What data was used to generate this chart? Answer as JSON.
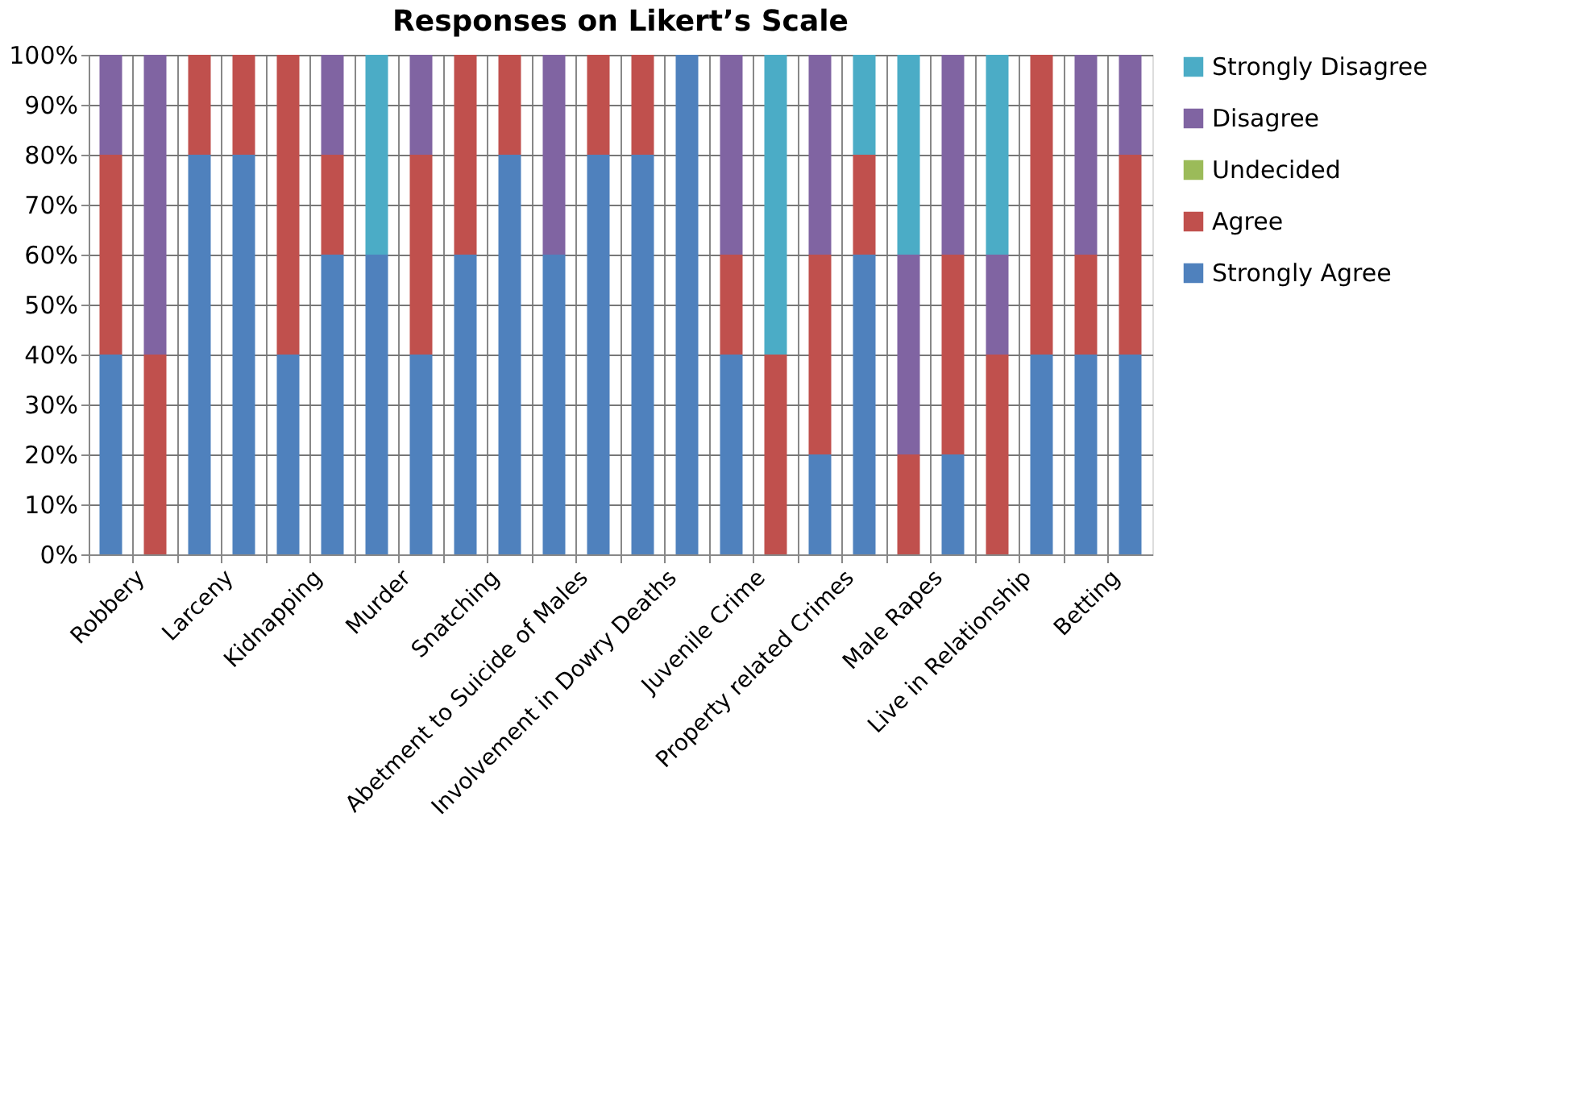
{
  "chart_data": {
    "type": "bar",
    "stacked": true,
    "title": "Responses on Likert’s Scale",
    "categories": [
      "Robbery",
      null,
      "Larceny",
      null,
      "Kidnapping",
      null,
      "Murder",
      null,
      "Snatching",
      null,
      "Abetment to  Suicide of Males",
      null,
      "Involvement in Dowry Deaths",
      null,
      "Juvenile Crime",
      null,
      "Property related Crimes",
      null,
      "Male Rapes",
      null,
      "Live in Relationship",
      null,
      "Betting",
      null
    ],
    "series": [
      {
        "name": "Strongly Agree",
        "color": "#4f81bd",
        "values": [
          40,
          0,
          80,
          80,
          40,
          60,
          60,
          40,
          60,
          80,
          60,
          80,
          80,
          100,
          40,
          0,
          20,
          60,
          0,
          20,
          0,
          40,
          40,
          40
        ]
      },
      {
        "name": "Agree",
        "color": "#c0504d",
        "values": [
          40,
          40,
          20,
          20,
          60,
          20,
          0,
          40,
          40,
          20,
          0,
          20,
          20,
          0,
          20,
          40,
          40,
          20,
          20,
          40,
          40,
          60,
          20,
          40
        ]
      },
      {
        "name": "Undecided",
        "color": "#9bbb59",
        "values": [
          0,
          0,
          0,
          0,
          0,
          0,
          0,
          0,
          0,
          0,
          0,
          0,
          0,
          0,
          0,
          0,
          0,
          0,
          0,
          0,
          0,
          0,
          0,
          0
        ]
      },
      {
        "name": "Disagree",
        "color": "#8064a2",
        "values": [
          20,
          60,
          0,
          0,
          0,
          20,
          0,
          20,
          0,
          0,
          40,
          0,
          0,
          0,
          40,
          0,
          40,
          0,
          40,
          40,
          20,
          0,
          40,
          20
        ]
      },
      {
        "name": "Strongly Disagree",
        "color": "#4bacc6",
        "values": [
          0,
          0,
          0,
          0,
          0,
          0,
          40,
          0,
          0,
          0,
          0,
          0,
          0,
          0,
          0,
          60,
          0,
          20,
          40,
          0,
          40,
          0,
          0,
          0
        ]
      }
    ],
    "ylim": [
      0,
      100
    ],
    "yticks": [
      {
        "value": 0,
        "label": "0%"
      },
      {
        "value": 10,
        "label": "10%"
      },
      {
        "value": 20,
        "label": "20%"
      },
      {
        "value": 30,
        "label": "30%"
      },
      {
        "value": 40,
        "label": "40%"
      },
      {
        "value": 50,
        "label": "50%"
      },
      {
        "value": 60,
        "label": "60%"
      },
      {
        "value": 70,
        "label": "70%"
      },
      {
        "value": 80,
        "label": "80%"
      },
      {
        "value": 90,
        "label": "90%"
      },
      {
        "value": 100,
        "label": "100%"
      }
    ],
    "grid": true,
    "legend": "right"
  }
}
